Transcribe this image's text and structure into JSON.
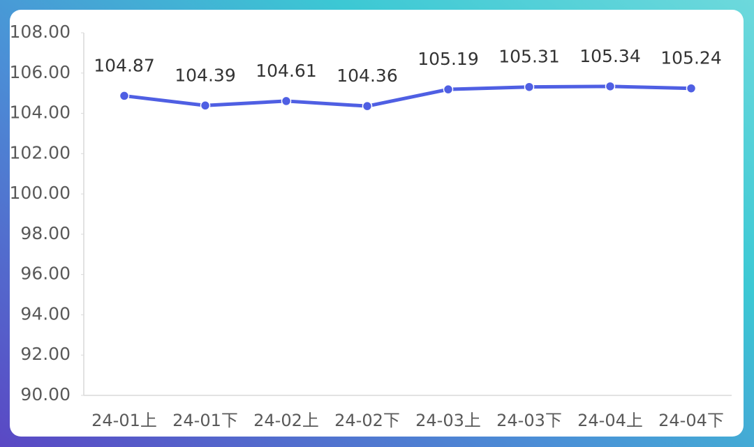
{
  "chart_data": {
    "type": "line",
    "categories": [
      "24-01上",
      "24-01下",
      "24-02上",
      "24-02下",
      "24-03上",
      "24-03下",
      "24-04上",
      "24-04下"
    ],
    "values": [
      104.87,
      104.39,
      104.61,
      104.36,
      105.19,
      105.31,
      105.34,
      105.24
    ],
    "color": "#4f5fe3",
    "ylim": [
      90,
      108
    ],
    "yticks": [
      {
        "value": 90,
        "label": "90.00"
      },
      {
        "value": 92,
        "label": "92.00"
      },
      {
        "value": 94,
        "label": "94.00"
      },
      {
        "value": 96,
        "label": "96.00"
      },
      {
        "value": 98,
        "label": "98.00"
      },
      {
        "value": 100,
        "label": "100.00"
      },
      {
        "value": 102,
        "label": "102.00"
      },
      {
        "value": 104,
        "label": "104.00"
      },
      {
        "value": 106,
        "label": "106.00"
      },
      {
        "value": 108,
        "label": "108.00"
      }
    ],
    "grid": false
  }
}
